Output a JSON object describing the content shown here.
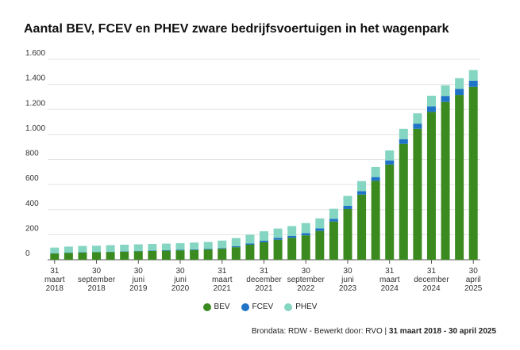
{
  "chart_data": {
    "type": "stacked-bar",
    "title": "Aantal BEV, FCEV en PHEV zware bedrijfsvoertuigen in het wagenpark",
    "categories": [
      "31 maart 2018",
      null,
      null,
      "30 september 2018",
      null,
      null,
      "30 juni 2019",
      null,
      null,
      "30 juni 2020",
      null,
      null,
      "31 maart 2021",
      null,
      null,
      "31 december 2021",
      null,
      null,
      "30 september 2022",
      null,
      null,
      "30 juni 2023",
      null,
      null,
      "31 maart 2024",
      null,
      null,
      "31 december 2024",
      null,
      null,
      "30 april 2025"
    ],
    "series": [
      {
        "name": "BEV",
        "color": "#3b8a1f",
        "values": [
          50,
          55,
          58,
          60,
          62,
          65,
          68,
          70,
          72,
          75,
          78,
          82,
          88,
          100,
          120,
          140,
          160,
          175,
          195,
          230,
          305,
          405,
          520,
          630,
          760,
          925,
          1045,
          1180,
          1260,
          1315,
          1380
        ]
      },
      {
        "name": "FCEV",
        "color": "#1f74c6",
        "values": [
          2,
          2,
          2,
          2,
          2,
          3,
          3,
          3,
          4,
          4,
          5,
          5,
          5,
          8,
          10,
          12,
          14,
          16,
          18,
          20,
          22,
          25,
          28,
          30,
          33,
          38,
          42,
          45,
          48,
          50,
          50
        ]
      },
      {
        "name": "PHEV",
        "color": "#84d5c1",
        "values": [
          45,
          48,
          50,
          50,
          52,
          52,
          52,
          53,
          53,
          53,
          54,
          55,
          60,
          65,
          70,
          75,
          75,
          78,
          80,
          80,
          80,
          80,
          80,
          80,
          80,
          82,
          82,
          85,
          85,
          85,
          85
        ]
      }
    ],
    "ylim": [
      0,
      1600
    ],
    "yticks": [
      0,
      200,
      400,
      600,
      800,
      {
        "value": 1000,
        "label": "1.000"
      },
      {
        "value": 1200,
        "label": "1.200"
      },
      {
        "value": 1400,
        "label": "1.400"
      },
      {
        "value": 1600,
        "label": "1.600"
      }
    ],
    "grid": true,
    "legend": "bottom",
    "source": "Brondata: RDW - Bewerkt door: RVO |",
    "period": "31 maart 2018 - 30 april 2025"
  }
}
